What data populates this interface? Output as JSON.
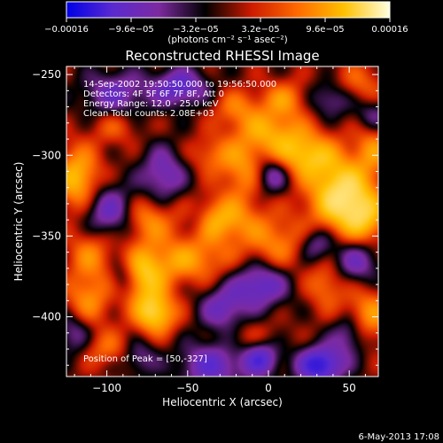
{
  "chart_data": {
    "type": "heatmap",
    "title": "Reconstructed RHESSI Image",
    "xlabel": "Heliocentric X (arcsec)",
    "ylabel": "Heliocentric Y (arcsec)",
    "xlim": [
      -125,
      68
    ],
    "ylim": [
      -437,
      -245
    ],
    "xticks": [
      -100,
      -50,
      0,
      50
    ],
    "xtick_labels": [
      "−100",
      "−50",
      "0",
      "50"
    ],
    "yticks": [
      -250,
      -300,
      -350,
      -400
    ],
    "ytick_labels": [
      "−250",
      "−300",
      "−350",
      "−400"
    ],
    "colorbar": {
      "range": [
        -0.00016,
        0.00016
      ],
      "ticks": [
        -0.00016,
        -9.6e-05,
        -3.2e-05,
        3.2e-05,
        9.6e-05,
        0.00016
      ],
      "tick_labels": [
        "−0.00016",
        "−9.6e−05",
        "−3.2e−05",
        "3.2e−05",
        "9.6e−05",
        "0.00016"
      ],
      "units": "(photons cm⁻² s⁻¹ asec⁻²)",
      "colors": [
        "#0000e6",
        "#5a2ad0",
        "#7d2aa0",
        "#000000",
        "#cc1a00",
        "#ff6a00",
        "#ffc000",
        "#ffffe0"
      ]
    },
    "annotations": [
      "14-Sep-2002 19:50:50.000 to 19:56:50.000",
      "Detectors: 4F 5F 6F 7F 8F, Att 0",
      "Energy Range: 12.0 - 25.0 keV",
      "Clean     Total counts: 2.08E+03"
    ],
    "peak_text": "Position of Peak = [50,-327]",
    "peak": {
      "x": 50,
      "y": -327
    },
    "blobs": [
      {
        "x": 45,
        "y": -325,
        "sx": 14,
        "sy": 16,
        "v": 1.0
      },
      {
        "x": 60,
        "y": -340,
        "sx": 10,
        "sy": 12,
        "v": 0.55
      },
      {
        "x": 22,
        "y": -300,
        "sx": 14,
        "sy": 10,
        "v": 0.7
      },
      {
        "x": 0,
        "y": -285,
        "sx": 16,
        "sy": 10,
        "v": 0.55
      },
      {
        "x": -15,
        "y": -310,
        "sx": 10,
        "sy": 12,
        "v": 0.5
      },
      {
        "x": -30,
        "y": -340,
        "sx": 16,
        "sy": 10,
        "v": 0.65
      },
      {
        "x": 5,
        "y": -355,
        "sx": 14,
        "sy": 12,
        "v": 0.45
      },
      {
        "x": -50,
        "y": -365,
        "sx": 18,
        "sy": 10,
        "v": 0.55
      },
      {
        "x": -75,
        "y": -340,
        "sx": 10,
        "sy": 10,
        "v": 0.5
      },
      {
        "x": -78,
        "y": -375,
        "sx": 10,
        "sy": 12,
        "v": 0.7
      },
      {
        "x": -70,
        "y": -398,
        "sx": 9,
        "sy": 9,
        "v": 0.85
      },
      {
        "x": -118,
        "y": -315,
        "sx": 10,
        "sy": 14,
        "v": 0.75
      },
      {
        "x": -110,
        "y": -360,
        "sx": 10,
        "sy": 12,
        "v": 0.45
      },
      {
        "x": -112,
        "y": -390,
        "sx": 10,
        "sy": 12,
        "v": 0.5
      },
      {
        "x": 10,
        "y": -265,
        "sx": 10,
        "sy": 8,
        "v": 0.45
      },
      {
        "x": 55,
        "y": -258,
        "sx": 12,
        "sy": 10,
        "v": 0.4
      },
      {
        "x": -20,
        "y": -270,
        "sx": 10,
        "sy": 8,
        "v": 0.35
      },
      {
        "x": 60,
        "y": -400,
        "sx": 12,
        "sy": 12,
        "v": 0.6
      },
      {
        "x": 35,
        "y": -380,
        "sx": 8,
        "sy": 10,
        "v": 0.4
      },
      {
        "x": -35,
        "y": -300,
        "sx": 10,
        "sy": 8,
        "v": 0.35
      },
      {
        "x": 65,
        "y": -295,
        "sx": 8,
        "sy": 12,
        "v": 0.45
      },
      {
        "x": -95,
        "y": -282,
        "sx": 10,
        "sy": 8,
        "v": 0.3
      },
      {
        "x": -100,
        "y": -420,
        "sx": 12,
        "sy": 8,
        "v": 0.35
      },
      {
        "x": -10,
        "y": -415,
        "sx": 12,
        "sy": 8,
        "v": 0.3
      },
      {
        "x": -55,
        "y": -258,
        "sx": 12,
        "sy": 8,
        "v": -0.7
      },
      {
        "x": -95,
        "y": -262,
        "sx": 14,
        "sy": 10,
        "v": -0.55
      },
      {
        "x": -100,
        "y": -335,
        "sx": 12,
        "sy": 12,
        "v": -0.6
      },
      {
        "x": -65,
        "y": -312,
        "sx": 10,
        "sy": 12,
        "v": -0.55
      },
      {
        "x": 2,
        "y": -312,
        "sx": 8,
        "sy": 8,
        "v": -0.6
      },
      {
        "x": -5,
        "y": -380,
        "sx": 12,
        "sy": 10,
        "v": -0.7
      },
      {
        "x": -28,
        "y": -395,
        "sx": 10,
        "sy": 10,
        "v": -0.55
      },
      {
        "x": -35,
        "y": -430,
        "sx": 14,
        "sy": 10,
        "v": -0.65
      },
      {
        "x": 32,
        "y": -430,
        "sx": 10,
        "sy": 8,
        "v": -1.0
      },
      {
        "x": -5,
        "y": -425,
        "sx": 8,
        "sy": 8,
        "v": -0.8
      },
      {
        "x": 55,
        "y": -365,
        "sx": 10,
        "sy": 10,
        "v": -0.55
      },
      {
        "x": 30,
        "y": -355,
        "sx": 8,
        "sy": 8,
        "v": -0.5
      },
      {
        "x": 40,
        "y": -265,
        "sx": 10,
        "sy": 8,
        "v": -0.5
      },
      {
        "x": 65,
        "y": -275,
        "sx": 8,
        "sy": 8,
        "v": -0.45
      },
      {
        "x": 50,
        "y": -410,
        "sx": 8,
        "sy": 10,
        "v": -0.6
      },
      {
        "x": -120,
        "y": -410,
        "sx": 8,
        "sy": 10,
        "v": -0.45
      },
      {
        "x": -80,
        "y": -425,
        "sx": 8,
        "sy": 8,
        "v": -0.4
      },
      {
        "x": -45,
        "y": -340,
        "sx": 6,
        "sy": 8,
        "v": -0.3
      },
      {
        "x": -90,
        "y": -375,
        "sx": 6,
        "sy": 8,
        "v": -0.4
      }
    ]
  },
  "footer_date": "6-May-2013 17:08"
}
